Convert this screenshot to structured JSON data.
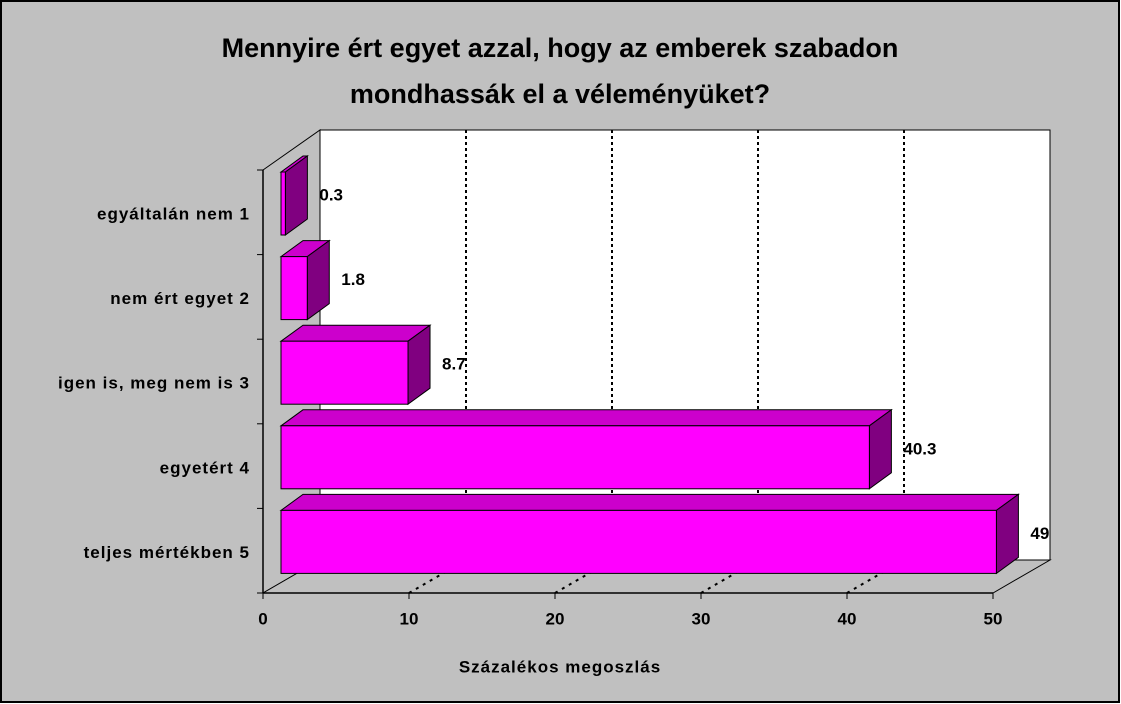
{
  "chart_data": {
    "type": "bar3d_horizontal",
    "title": [
      "Mennyire ért egyet azzal, hogy az emberek szabadon",
      "mondhassák el a véleményüket?"
    ],
    "categories": [
      "egyáltalán nem 1",
      "nem ért egyet 2",
      "igen is, meg nem is 3",
      "egyetért 4",
      "teljes mértékben 5"
    ],
    "values": [
      0.3,
      1.8,
      8.7,
      40.3,
      49
    ],
    "colors": {
      "front": "#ff00ff",
      "top": "#cc00cc",
      "side": "#800080"
    },
    "xlim": [
      0,
      50
    ],
    "xticks": [
      0,
      10,
      20,
      30,
      40,
      50
    ],
    "xlabel": "Százalékos megoszlás",
    "grid": true
  }
}
